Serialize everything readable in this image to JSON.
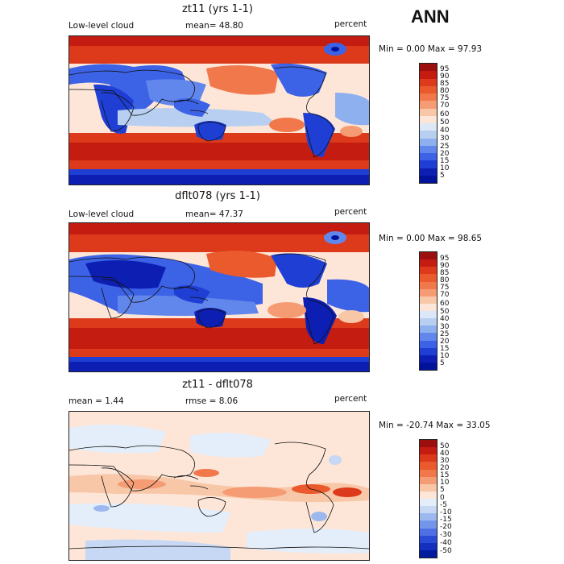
{
  "season": "ANN",
  "panels": [
    {
      "title": "zt11 (yrs 1-1)",
      "left_label": "Low-level cloud",
      "stat": "mean=  48.80",
      "units": "percent",
      "min_text": "Min =   0.00",
      "max_text": "Max =  97.93",
      "colorbar_labels": [
        "95",
        "90",
        "85",
        "80",
        "75",
        "70",
        "60",
        "50",
        "40",
        "30",
        "25",
        "20",
        "15",
        "10",
        "5"
      ]
    },
    {
      "title": "dflt078 (yrs 1-1)",
      "left_label": "Low-level cloud",
      "stat": "mean=  47.37",
      "units": "percent",
      "min_text": "Min =   0.00",
      "max_text": "Max =  98.65",
      "colorbar_labels": [
        "95",
        "90",
        "85",
        "80",
        "75",
        "70",
        "60",
        "50",
        "40",
        "30",
        "25",
        "20",
        "15",
        "10",
        "5"
      ]
    },
    {
      "title": "zt11 - dflt078",
      "left_label": "mean =   1.44",
      "stat": "rmse =   8.06",
      "units": "percent",
      "min_text": "Min = -20.74",
      "max_text": "Max =  33.05",
      "colorbar_labels": [
        "50",
        "40",
        "30",
        "20",
        "15",
        "10",
        "5",
        "0",
        "-5",
        "-10",
        "-15",
        "-20",
        "-30",
        "-40",
        "-50"
      ]
    }
  ],
  "colors": {
    "abs_scale": [
      "#9c0f0f",
      "#c41c10",
      "#dc3a1a",
      "#ea5a2c",
      "#f1784a",
      "#f59c74",
      "#f8c7a8",
      "#fde6d8",
      "#dce8f7",
      "#b8cff1",
      "#8fb0ee",
      "#6287ec",
      "#3c62e6",
      "#1f3fd4",
      "#0d1fb3",
      "#00139a"
    ],
    "diff_scale": [
      "#9c0f0f",
      "#c41c10",
      "#dc3a1a",
      "#ea5a2c",
      "#f1784a",
      "#f59c74",
      "#f8c7a8",
      "#fde6d8",
      "#e4eefb",
      "#c6d8f4",
      "#9db8ee",
      "#7396ea",
      "#4d70e4",
      "#2a4bd6",
      "#1430be",
      "#001b9e"
    ]
  }
}
